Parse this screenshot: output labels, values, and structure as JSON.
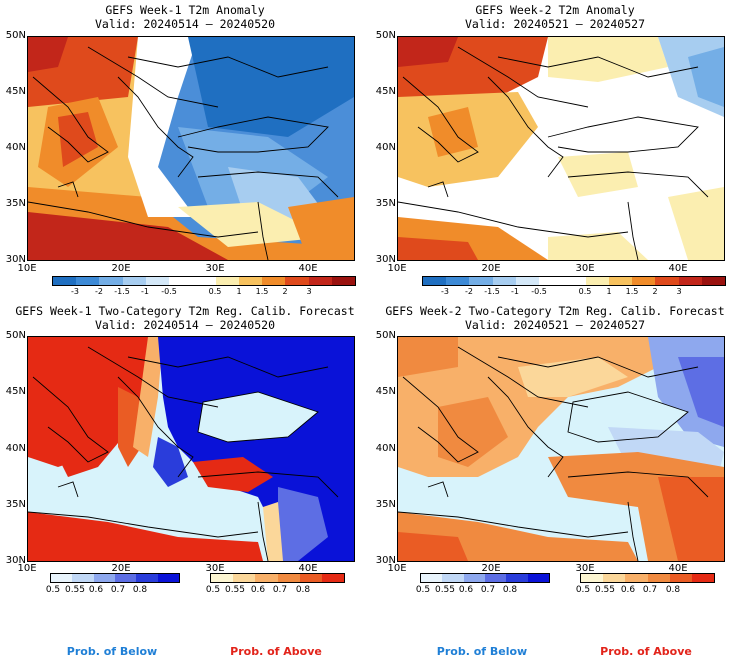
{
  "panels": [
    {
      "title": "GEFS Week-1 T2m Anomaly",
      "valid": "Valid: 20240514 – 20240520"
    },
    {
      "title": "GEFS Week-2 T2m Anomaly",
      "valid": "Valid: 20240521 – 20240527"
    },
    {
      "title": "GEFS Week-1 Two-Category T2m Reg. Calib. Forecast",
      "valid": "Valid: 20240514 – 20240520"
    },
    {
      "title": "GEFS Week-2 Two-Category T2m Reg. Calib. Forecast",
      "valid": "Valid: 20240521 – 20240527"
    }
  ],
  "lat_labels": [
    "50N",
    "45N",
    "40N",
    "35N",
    "30N"
  ],
  "lon_labels": [
    "10E",
    "20E",
    "30E",
    "40E"
  ],
  "anomaly_colorbar": {
    "ticks": [
      "-3",
      "-2",
      "-1.5",
      "-1",
      "-0.5",
      "0.5",
      "1",
      "1.5",
      "2",
      "3"
    ],
    "colors": [
      "#1f6fc1",
      "#3d8ad6",
      "#74aee6",
      "#a7cdf0",
      "#d4e8f8",
      "#ffffff",
      "#ffffff",
      "#fbeeb0",
      "#f7c25f",
      "#f08c2a",
      "#df4a1c",
      "#c2261a",
      "#9a120f"
    ]
  },
  "prob_colorbar_below": {
    "ticks": [
      "0.5",
      "0.55",
      "0.6",
      "0.7",
      "0.8"
    ],
    "colors": [
      "#e9f4fc",
      "#c1d8f6",
      "#8ea8ee",
      "#5d6ee4",
      "#2a3ddb",
      "#0a12d8"
    ]
  },
  "prob_colorbar_above": {
    "ticks": [
      "0.5",
      "0.55",
      "0.6",
      "0.7",
      "0.8"
    ],
    "colors": [
      "#fdf6d2",
      "#fbd79a",
      "#f8b069",
      "#f08a40",
      "#ea5c24",
      "#e52a14"
    ]
  },
  "footer": {
    "below": "Prob. of Below",
    "above": "Prob. of Above"
  },
  "colors": {
    "below_text": "#1f7fd6",
    "above_text": "#e2231a",
    "sea": "#d8f3fb"
  }
}
